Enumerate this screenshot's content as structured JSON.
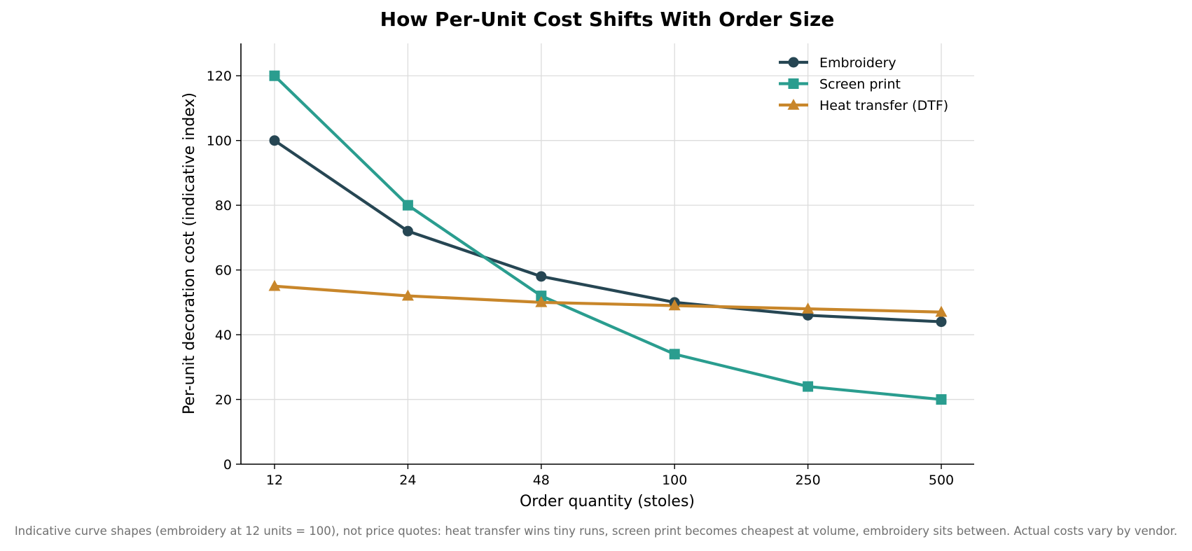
{
  "chart_data": {
    "type": "line",
    "title": "How Per-Unit Cost Shifts With Order Size",
    "xlabel": "Order quantity (stoles)",
    "ylabel": "Per-unit decoration cost (indicative index)",
    "categories": [
      "12",
      "24",
      "48",
      "100",
      "250",
      "500"
    ],
    "ylim": [
      0,
      130
    ],
    "yticks": [
      0,
      20,
      40,
      60,
      80,
      100,
      120
    ],
    "grid": true,
    "legend_position": "top-right",
    "series": [
      {
        "name": "Embroidery",
        "color": "#264653",
        "marker": "circle",
        "values": [
          100,
          72,
          58,
          50,
          46,
          44
        ]
      },
      {
        "name": "Screen print",
        "color": "#2a9d8f",
        "marker": "square",
        "values": [
          120,
          80,
          52,
          34,
          24,
          20
        ]
      },
      {
        "name": "Heat transfer (DTF)",
        "color": "#c8862a",
        "marker": "triangle",
        "values": [
          55,
          52,
          50,
          49,
          48,
          47
        ]
      }
    ],
    "caption": "Indicative curve shapes (embroidery at 12 units = 100), not price quotes: heat transfer wins tiny runs, screen print becomes cheapest at volume, embroidery sits between. Actual costs vary by vendor."
  }
}
